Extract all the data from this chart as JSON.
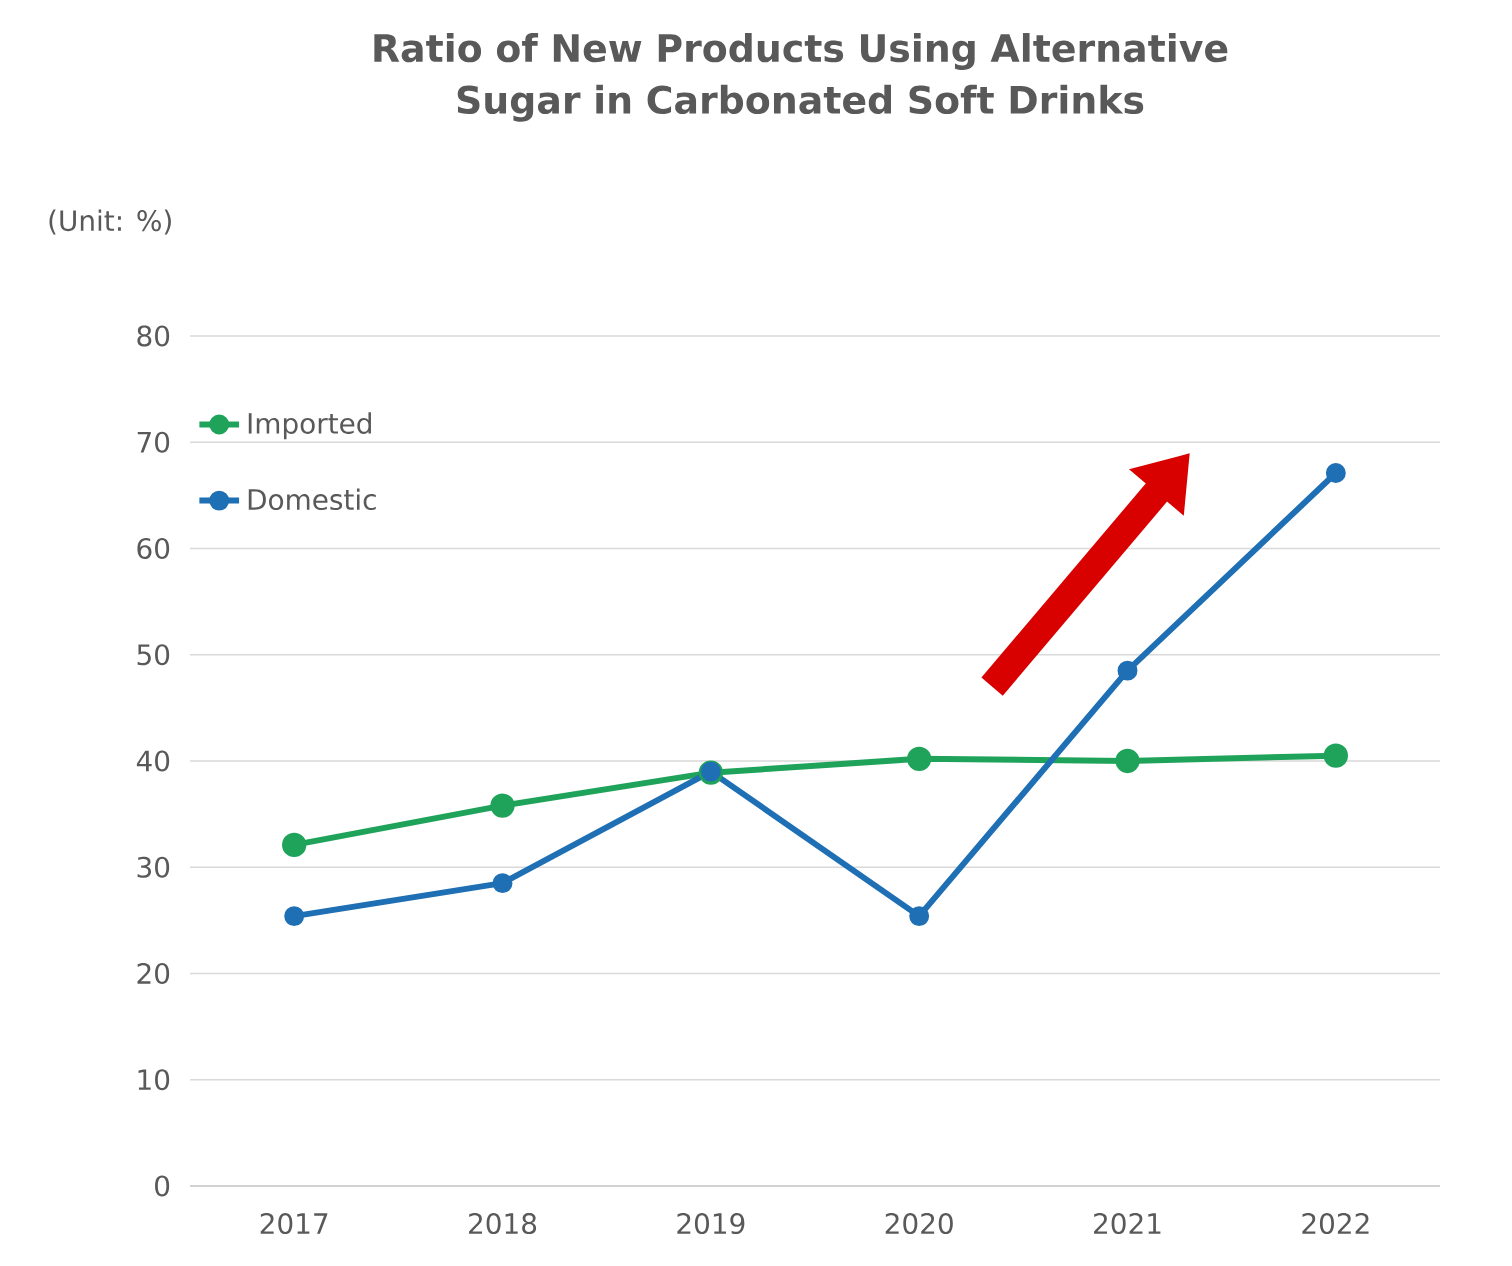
{
  "chart_data": {
    "type": "line",
    "title": "Ratio of New Products Using Alternative Sugar in Carbonated Soft Drinks",
    "ylabel": "(Unit: %)",
    "categories": [
      "2017",
      "2018",
      "2019",
      "2020",
      "2021",
      "2022"
    ],
    "series": [
      {
        "name": "Imported",
        "color": "#1fa35a",
        "values": [
          32.1,
          35.8,
          38.9,
          40.2,
          40.0,
          40.5
        ]
      },
      {
        "name": "Domestic",
        "color": "#1f6fb4",
        "values": [
          25.4,
          28.5,
          39.0,
          25.4,
          48.5,
          67.1
        ]
      }
    ],
    "ylim": [
      0,
      80
    ],
    "yticks": [
      0,
      10,
      20,
      30,
      40,
      50,
      60,
      70,
      80
    ],
    "grid": "y",
    "legend": "top left",
    "marker": "circle",
    "line_style": "solid"
  }
}
